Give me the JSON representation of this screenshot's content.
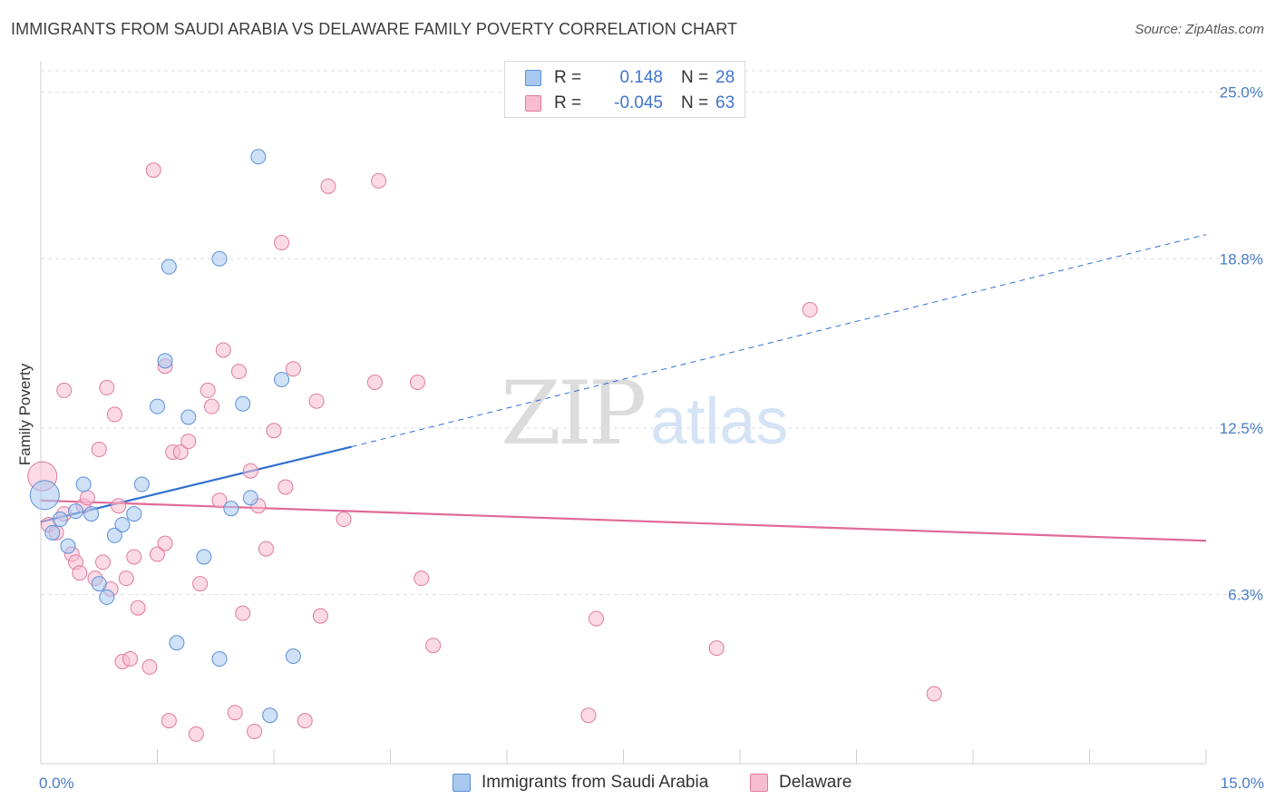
{
  "header": {
    "title": "IMMIGRANTS FROM SAUDI ARABIA VS DELAWARE FAMILY POVERTY CORRELATION CHART",
    "source": "Source: ZipAtlas.com"
  },
  "watermark": {
    "zip": "ZIP",
    "atlas": "atlas"
  },
  "legend": {
    "rows": [
      {
        "r_label": "R =",
        "r_value": "0.148",
        "n_label": "N =",
        "n_value": "28",
        "color": "#a8c8f0",
        "border": "#5b8fd6"
      },
      {
        "r_label": "R =",
        "r_value": "-0.045",
        "n_label": "N =",
        "n_value": "63",
        "color": "#f7bcd0",
        "border": "#e07aa0"
      }
    ]
  },
  "bottom_legend": {
    "items": [
      {
        "label": "Immigrants from Saudi Arabia",
        "color": "#a8c8f0",
        "border": "#5b8fd6"
      },
      {
        "label": "Delaware",
        "color": "#f7bcd0",
        "border": "#e07aa0"
      }
    ]
  },
  "chart_data": {
    "type": "scatter",
    "title": "IMMIGRANTS FROM SAUDI ARABIA VS DELAWARE FAMILY POVERTY CORRELATION CHART",
    "xlabel": "",
    "ylabel": "Family Poverty",
    "xlim": [
      0,
      15
    ],
    "ylim": [
      0,
      25.8
    ],
    "x_tick_labels": [
      {
        "value": 0,
        "label": "0.0%"
      },
      {
        "value": 15,
        "label": "15.0%"
      }
    ],
    "x_minor_ticks": [
      0,
      1.5,
      3,
      4.5,
      6,
      7.5,
      9,
      10.5,
      12,
      13.5,
      15
    ],
    "y_ticks": [
      {
        "value": 6.3,
        "label": "6.3%"
      },
      {
        "value": 12.5,
        "label": "12.5%"
      },
      {
        "value": 18.8,
        "label": "18.8%"
      },
      {
        "value": 25.0,
        "label": "25.0%"
      }
    ],
    "grid": "horizontal dashed",
    "series": [
      {
        "name": "Immigrants from Saudi Arabia",
        "color": "#a8c8f0",
        "stroke": "#5b8fd6",
        "trend": {
          "x0": 0,
          "y0": 9.0,
          "x1": 4.0,
          "y1": 11.8,
          "dash_to_x": 15,
          "dash_to_y": 19.7,
          "color": "#2f6fd0"
        },
        "points": [
          [
            0.05,
            10.0
          ],
          [
            0.15,
            8.6
          ],
          [
            0.25,
            9.1
          ],
          [
            0.35,
            8.1
          ],
          [
            0.45,
            9.4
          ],
          [
            0.55,
            10.4
          ],
          [
            0.65,
            9.3
          ],
          [
            0.75,
            6.7
          ],
          [
            0.85,
            6.2
          ],
          [
            0.95,
            8.5
          ],
          [
            1.05,
            8.9
          ],
          [
            1.2,
            9.3
          ],
          [
            1.3,
            10.4
          ],
          [
            1.5,
            13.3
          ],
          [
            1.6,
            15.0
          ],
          [
            1.65,
            18.5
          ],
          [
            1.75,
            4.5
          ],
          [
            1.9,
            12.9
          ],
          [
            2.1,
            7.7
          ],
          [
            2.3,
            3.9
          ],
          [
            2.3,
            18.8
          ],
          [
            2.45,
            9.5
          ],
          [
            2.6,
            13.4
          ],
          [
            2.7,
            9.9
          ],
          [
            2.8,
            22.6
          ],
          [
            2.95,
            1.8
          ],
          [
            3.1,
            14.3
          ],
          [
            3.25,
            4.0
          ]
        ]
      },
      {
        "name": "Delaware",
        "color": "#f7bcd0",
        "stroke": "#e07aa0",
        "trend": {
          "x0": 0,
          "y0": 9.8,
          "x1": 15,
          "y1": 8.3,
          "color": "#e06a98"
        },
        "points": [
          [
            0.02,
            10.7
          ],
          [
            0.1,
            8.9
          ],
          [
            0.2,
            8.6
          ],
          [
            0.3,
            9.3
          ],
          [
            0.3,
            13.9
          ],
          [
            0.4,
            7.8
          ],
          [
            0.45,
            7.5
          ],
          [
            0.5,
            7.1
          ],
          [
            0.55,
            9.6
          ],
          [
            0.6,
            9.9
          ],
          [
            0.7,
            6.9
          ],
          [
            0.75,
            11.7
          ],
          [
            0.8,
            7.5
          ],
          [
            0.85,
            14.0
          ],
          [
            0.9,
            6.5
          ],
          [
            0.95,
            13.0
          ],
          [
            1.0,
            9.6
          ],
          [
            1.05,
            3.8
          ],
          [
            1.1,
            6.9
          ],
          [
            1.15,
            3.9
          ],
          [
            1.2,
            7.7
          ],
          [
            1.25,
            5.8
          ],
          [
            1.4,
            3.6
          ],
          [
            1.45,
            22.1
          ],
          [
            1.5,
            7.8
          ],
          [
            1.6,
            8.2
          ],
          [
            1.6,
            14.8
          ],
          [
            1.65,
            1.6
          ],
          [
            1.7,
            11.6
          ],
          [
            1.8,
            11.6
          ],
          [
            1.9,
            12.0
          ],
          [
            2.0,
            1.1
          ],
          [
            2.05,
            6.7
          ],
          [
            2.15,
            13.9
          ],
          [
            2.2,
            13.3
          ],
          [
            2.3,
            9.8
          ],
          [
            2.35,
            15.4
          ],
          [
            2.5,
            1.9
          ],
          [
            2.55,
            14.6
          ],
          [
            2.6,
            5.6
          ],
          [
            2.7,
            10.9
          ],
          [
            2.75,
            1.2
          ],
          [
            2.8,
            9.6
          ],
          [
            2.9,
            8.0
          ],
          [
            3.0,
            12.4
          ],
          [
            3.1,
            19.4
          ],
          [
            3.15,
            10.3
          ],
          [
            3.25,
            14.7
          ],
          [
            3.4,
            1.6
          ],
          [
            3.55,
            13.5
          ],
          [
            3.6,
            5.5
          ],
          [
            3.7,
            21.5
          ],
          [
            3.9,
            9.1
          ],
          [
            4.3,
            14.2
          ],
          [
            4.35,
            21.7
          ],
          [
            4.85,
            14.2
          ],
          [
            4.9,
            6.9
          ],
          [
            5.05,
            4.4
          ],
          [
            7.05,
            1.8
          ],
          [
            7.15,
            5.4
          ],
          [
            8.7,
            4.3
          ],
          [
            9.9,
            16.9
          ],
          [
            11.5,
            2.6
          ]
        ]
      }
    ]
  }
}
